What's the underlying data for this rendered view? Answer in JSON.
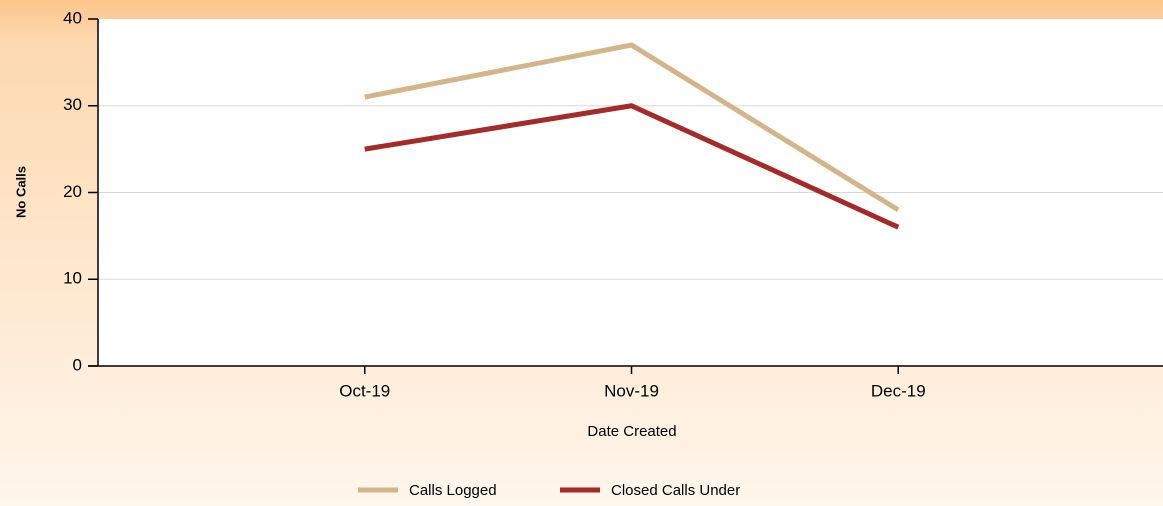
{
  "chart_data": {
    "type": "line",
    "x_label": "Date Created",
    "y_label": "No Calls",
    "categories": [
      "Oct-19",
      "Nov-19",
      "Dec-19"
    ],
    "series": [
      {
        "name": "Calls Logged",
        "color": "#d4b48a",
        "values": [
          31,
          37,
          18
        ]
      },
      {
        "name": "Closed Calls Under",
        "color": "#a52a2a",
        "values": [
          25,
          30,
          16
        ]
      }
    ],
    "ylim": [
      0,
      40
    ],
    "yticks": [
      0,
      10,
      20,
      30,
      40
    ],
    "grid": true,
    "legend": "bottom"
  }
}
